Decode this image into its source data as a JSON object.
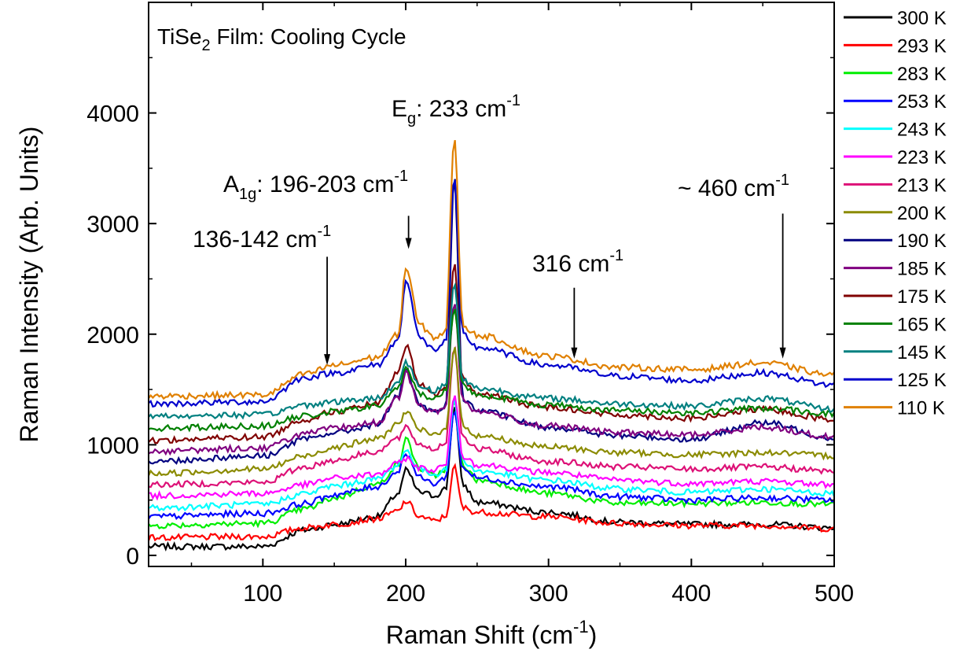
{
  "chart_data": {
    "type": "line",
    "title": "TiSe",
    "title_sub": "2",
    "title_rest": " Film: Cooling Cycle",
    "xlabel": "Raman Shift (cm",
    "xlabel_sup": "-1",
    "xlabel_close": ")",
    "ylabel": "Raman Intensity (Arb. Units)",
    "xlim": [
      20,
      500
    ],
    "ylim": [
      -100,
      5000
    ],
    "xticks": [
      100,
      200,
      300,
      400,
      500
    ],
    "xtick_labels": [
      "100",
      "200",
      "300",
      "400",
      "500"
    ],
    "yticks": [
      0,
      1000,
      2000,
      3000,
      4000
    ],
    "ytick_labels": [
      "0",
      "1000",
      "2000",
      "3000",
      "4000"
    ],
    "grid": false,
    "legend_position": "outside-right",
    "annotations": [
      {
        "id": "a136",
        "text": "136-142 cm",
        "sup": "-1",
        "arrow_x": 145,
        "arrow_y_start": 2700,
        "arrow_y_end": 1720
      },
      {
        "id": "a196",
        "pre": "A",
        "sub": "1g",
        "text": ": 196-203 cm",
        "sup": "-1",
        "arrow_x": 202,
        "arrow_y_start": 3070,
        "arrow_y_end": 2770
      },
      {
        "id": "a233",
        "pre": "E",
        "sub": "g",
        "text": ": 233 cm",
        "sup": "-1"
      },
      {
        "id": "a316",
        "text": "316 cm",
        "sup": "-1",
        "arrow_x": 318,
        "arrow_y_start": 2420,
        "arrow_y_end": 1780
      },
      {
        "id": "a460",
        "text": "~ 460 cm",
        "sup": "-1",
        "arrow_x": 464,
        "arrow_y_start": 3090,
        "arrow_y_end": 1780
      }
    ],
    "series": [
      {
        "name": "300 K",
        "color": "#000000",
        "points": [
          [
            20,
            80
          ],
          [
            100,
            80
          ],
          [
            130,
            230
          ],
          [
            150,
            280
          ],
          [
            180,
            350
          ],
          [
            195,
            560
          ],
          [
            200,
            770
          ],
          [
            210,
            570
          ],
          [
            220,
            540
          ],
          [
            228,
            600
          ],
          [
            234,
            1350
          ],
          [
            240,
            640
          ],
          [
            250,
            480
          ],
          [
            300,
            390
          ],
          [
            350,
            300
          ],
          [
            400,
            280
          ],
          [
            450,
            280
          ],
          [
            500,
            250
          ]
        ]
      },
      {
        "name": "293 K",
        "color": "#ff0000",
        "points": [
          [
            20,
            160
          ],
          [
            100,
            170
          ],
          [
            130,
            250
          ],
          [
            150,
            280
          ],
          [
            180,
            330
          ],
          [
            195,
            400
          ],
          [
            200,
            490
          ],
          [
            210,
            350
          ],
          [
            220,
            310
          ],
          [
            228,
            350
          ],
          [
            234,
            800
          ],
          [
            240,
            430
          ],
          [
            250,
            390
          ],
          [
            300,
            350
          ],
          [
            350,
            290
          ],
          [
            400,
            270
          ],
          [
            450,
            270
          ],
          [
            500,
            240
          ]
        ]
      },
      {
        "name": "283 K",
        "color": "#00ee00",
        "points": [
          [
            20,
            270
          ],
          [
            100,
            290
          ],
          [
            130,
            420
          ],
          [
            150,
            520
          ],
          [
            180,
            640
          ],
          [
            195,
            820
          ],
          [
            200,
            1050
          ],
          [
            210,
            780
          ],
          [
            220,
            720
          ],
          [
            228,
            780
          ],
          [
            234,
            1400
          ],
          [
            240,
            820
          ],
          [
            250,
            680
          ],
          [
            300,
            560
          ],
          [
            350,
            470
          ],
          [
            400,
            470
          ],
          [
            450,
            480
          ],
          [
            500,
            460
          ]
        ]
      },
      {
        "name": "253 K",
        "color": "#0000ff",
        "points": [
          [
            20,
            350
          ],
          [
            100,
            380
          ],
          [
            130,
            470
          ],
          [
            150,
            550
          ],
          [
            180,
            620
          ],
          [
            195,
            760
          ],
          [
            200,
            930
          ],
          [
            210,
            700
          ],
          [
            220,
            650
          ],
          [
            228,
            700
          ],
          [
            234,
            1300
          ],
          [
            240,
            790
          ],
          [
            250,
            700
          ],
          [
            300,
            620
          ],
          [
            350,
            530
          ],
          [
            400,
            500
          ],
          [
            450,
            520
          ],
          [
            500,
            500
          ]
        ]
      },
      {
        "name": "243 K",
        "color": "#00ffff",
        "points": [
          [
            20,
            430
          ],
          [
            100,
            460
          ],
          [
            130,
            560
          ],
          [
            150,
            630
          ],
          [
            180,
            690
          ],
          [
            195,
            820
          ],
          [
            200,
            950
          ],
          [
            210,
            780
          ],
          [
            220,
            730
          ],
          [
            228,
            780
          ],
          [
            234,
            1400
          ],
          [
            240,
            860
          ],
          [
            250,
            760
          ],
          [
            300,
            680
          ],
          [
            350,
            600
          ],
          [
            400,
            570
          ],
          [
            450,
            600
          ],
          [
            500,
            560
          ]
        ]
      },
      {
        "name": "223 K",
        "color": "#ff00ff",
        "points": [
          [
            20,
            540
          ],
          [
            100,
            560
          ],
          [
            130,
            640
          ],
          [
            150,
            700
          ],
          [
            180,
            730
          ],
          [
            195,
            830
          ],
          [
            200,
            880
          ],
          [
            210,
            790
          ],
          [
            220,
            770
          ],
          [
            228,
            820
          ],
          [
            234,
            1460
          ],
          [
            240,
            900
          ],
          [
            250,
            820
          ],
          [
            300,
            750
          ],
          [
            350,
            680
          ],
          [
            400,
            650
          ],
          [
            450,
            670
          ],
          [
            500,
            640
          ]
        ]
      },
      {
        "name": "213 K",
        "color": "#dd1177",
        "points": [
          [
            20,
            640
          ],
          [
            100,
            660
          ],
          [
            130,
            800
          ],
          [
            150,
            860
          ],
          [
            180,
            940
          ],
          [
            195,
            1060
          ],
          [
            200,
            1150
          ],
          [
            210,
            1000
          ],
          [
            220,
            960
          ],
          [
            228,
            1020
          ],
          [
            234,
            1900
          ],
          [
            240,
            1070
          ],
          [
            250,
            960
          ],
          [
            300,
            850
          ],
          [
            350,
            800
          ],
          [
            400,
            780
          ],
          [
            450,
            800
          ],
          [
            500,
            760
          ]
        ]
      },
      {
        "name": "200 K",
        "color": "#8b8b00",
        "points": [
          [
            20,
            740
          ],
          [
            100,
            780
          ],
          [
            130,
            900
          ],
          [
            150,
            980
          ],
          [
            180,
            1050
          ],
          [
            195,
            1190
          ],
          [
            200,
            1300
          ],
          [
            210,
            1130
          ],
          [
            220,
            1090
          ],
          [
            228,
            1150
          ],
          [
            234,
            1870
          ],
          [
            240,
            1180
          ],
          [
            250,
            1080
          ],
          [
            300,
            980
          ],
          [
            350,
            930
          ],
          [
            400,
            910
          ],
          [
            450,
            930
          ],
          [
            500,
            900
          ]
        ]
      },
      {
        "name": "190 K",
        "color": "#000080",
        "points": [
          [
            20,
            850
          ],
          [
            100,
            900
          ],
          [
            130,
            1050
          ],
          [
            150,
            1110
          ],
          [
            180,
            1180
          ],
          [
            195,
            1450
          ],
          [
            200,
            1680
          ],
          [
            210,
            1350
          ],
          [
            220,
            1290
          ],
          [
            228,
            1340
          ],
          [
            234,
            3450
          ],
          [
            240,
            1420
          ],
          [
            250,
            1310
          ],
          [
            300,
            1160
          ],
          [
            350,
            1080
          ],
          [
            400,
            1050
          ],
          [
            450,
            1200
          ],
          [
            500,
            1060
          ]
        ]
      },
      {
        "name": "185 K",
        "color": "#800080",
        "points": [
          [
            20,
            940
          ],
          [
            100,
            970
          ],
          [
            130,
            1100
          ],
          [
            150,
            1150
          ],
          [
            180,
            1200
          ],
          [
            195,
            1420
          ],
          [
            200,
            1650
          ],
          [
            210,
            1350
          ],
          [
            220,
            1290
          ],
          [
            228,
            1340
          ],
          [
            234,
            2300
          ],
          [
            240,
            1400
          ],
          [
            250,
            1300
          ],
          [
            300,
            1170
          ],
          [
            350,
            1110
          ],
          [
            400,
            1090
          ],
          [
            450,
            1160
          ],
          [
            500,
            1070
          ]
        ]
      },
      {
        "name": "175 K",
        "color": "#800000",
        "points": [
          [
            20,
            1040
          ],
          [
            100,
            1070
          ],
          [
            130,
            1230
          ],
          [
            150,
            1300
          ],
          [
            180,
            1370
          ],
          [
            195,
            1650
          ],
          [
            200,
            1900
          ],
          [
            210,
            1540
          ],
          [
            220,
            1460
          ],
          [
            228,
            1510
          ],
          [
            234,
            2650
          ],
          [
            240,
            1590
          ],
          [
            250,
            1460
          ],
          [
            300,
            1340
          ],
          [
            350,
            1270
          ],
          [
            400,
            1240
          ],
          [
            450,
            1320
          ],
          [
            500,
            1230
          ]
        ]
      },
      {
        "name": "165 K",
        "color": "#008000",
        "points": [
          [
            20,
            1150
          ],
          [
            100,
            1170
          ],
          [
            130,
            1260
          ],
          [
            150,
            1300
          ],
          [
            180,
            1350
          ],
          [
            195,
            1520
          ],
          [
            200,
            1680
          ],
          [
            210,
            1460
          ],
          [
            220,
            1420
          ],
          [
            228,
            1480
          ],
          [
            234,
            2250
          ],
          [
            240,
            1540
          ],
          [
            250,
            1450
          ],
          [
            300,
            1360
          ],
          [
            350,
            1310
          ],
          [
            400,
            1290
          ],
          [
            450,
            1330
          ],
          [
            500,
            1280
          ]
        ]
      },
      {
        "name": "145 K",
        "color": "#008080",
        "points": [
          [
            20,
            1260
          ],
          [
            100,
            1270
          ],
          [
            130,
            1360
          ],
          [
            150,
            1390
          ],
          [
            180,
            1420
          ],
          [
            195,
            1560
          ],
          [
            200,
            1750
          ],
          [
            210,
            1530
          ],
          [
            220,
            1490
          ],
          [
            228,
            1540
          ],
          [
            234,
            2470
          ],
          [
            240,
            1590
          ],
          [
            250,
            1510
          ],
          [
            300,
            1420
          ],
          [
            350,
            1370
          ],
          [
            400,
            1350
          ],
          [
            450,
            1420
          ],
          [
            500,
            1320
          ]
        ]
      },
      {
        "name": "125 K",
        "color": "#0000cd",
        "points": [
          [
            20,
            1370
          ],
          [
            100,
            1390
          ],
          [
            130,
            1610
          ],
          [
            150,
            1650
          ],
          [
            180,
            1720
          ],
          [
            195,
            1950
          ],
          [
            200,
            2500
          ],
          [
            210,
            1960
          ],
          [
            220,
            1860
          ],
          [
            228,
            1930
          ],
          [
            234,
            3420
          ],
          [
            240,
            2000
          ],
          [
            250,
            1880
          ],
          [
            300,
            1720
          ],
          [
            350,
            1620
          ],
          [
            400,
            1580
          ],
          [
            450,
            1650
          ],
          [
            500,
            1540
          ]
        ]
      },
      {
        "name": "110 K",
        "color": "#e08000",
        "points": [
          [
            20,
            1440
          ],
          [
            100,
            1450
          ],
          [
            130,
            1640
          ],
          [
            150,
            1720
          ],
          [
            180,
            1790
          ],
          [
            195,
            2000
          ],
          [
            200,
            2600
          ],
          [
            210,
            2080
          ],
          [
            220,
            1970
          ],
          [
            228,
            2020
          ],
          [
            234,
            3800
          ],
          [
            240,
            2080
          ],
          [
            250,
            1990
          ],
          [
            300,
            1800
          ],
          [
            350,
            1700
          ],
          [
            400,
            1680
          ],
          [
            450,
            1740
          ],
          [
            500,
            1630
          ]
        ]
      }
    ]
  }
}
